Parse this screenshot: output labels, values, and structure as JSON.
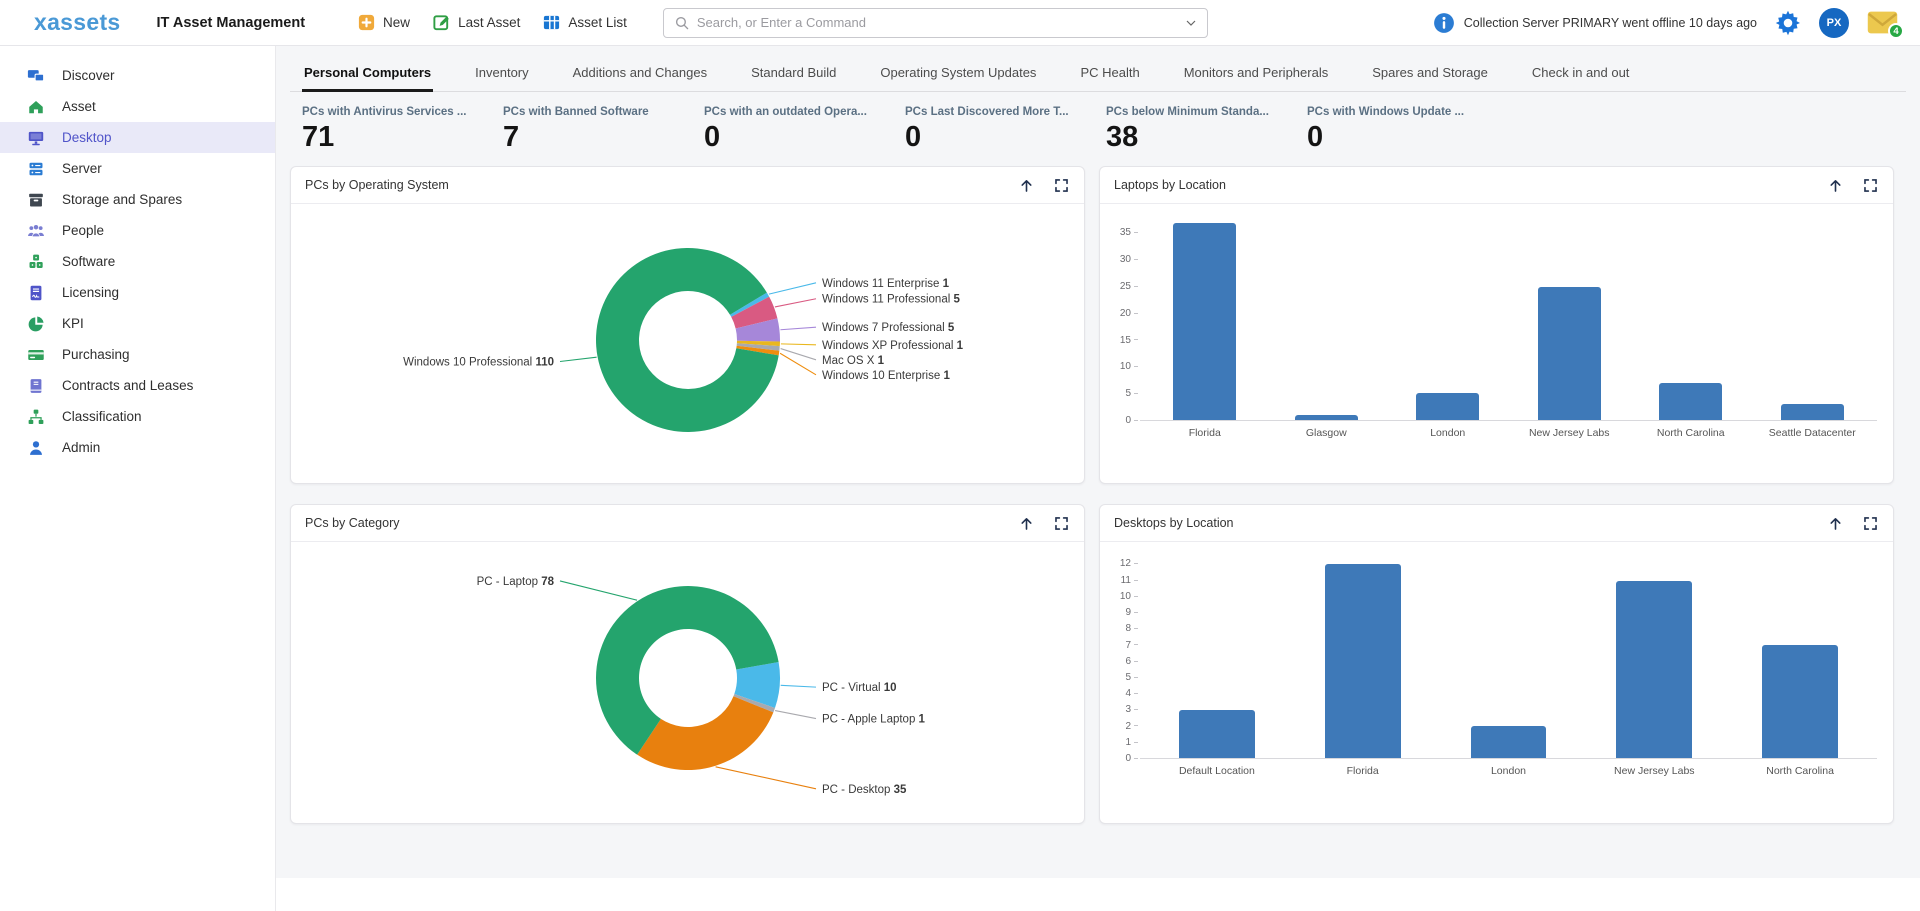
{
  "topbar": {
    "logo": "xassets",
    "app_title": "IT Asset Management",
    "actions": [
      {
        "label": "New",
        "icon": "plus-square"
      },
      {
        "label": "Last Asset",
        "icon": "edit-square"
      },
      {
        "label": "Asset List",
        "icon": "table"
      }
    ],
    "search": {
      "placeholder": "Search, or Enter a Command"
    },
    "notice": "Collection Server PRIMARY went offline 10 days ago",
    "user_initials": "PX",
    "mail_badge_count": "4"
  },
  "sidebar": {
    "items": [
      {
        "label": "Discover",
        "icon": "discover",
        "color": "#2e6fd0",
        "active": false
      },
      {
        "label": "Asset",
        "icon": "asset",
        "color": "#2fa05a",
        "active": false
      },
      {
        "label": "Desktop",
        "icon": "desktop",
        "color": "#4f54c8",
        "active": true
      },
      {
        "label": "Server",
        "icon": "server",
        "color": "#2b7cd3",
        "active": false
      },
      {
        "label": "Storage and Spares",
        "icon": "storage",
        "color": "#3f4750",
        "active": false
      },
      {
        "label": "People",
        "icon": "people",
        "color": "#7a7ed2",
        "active": false
      },
      {
        "label": "Software",
        "icon": "software",
        "color": "#2fa05a",
        "active": false
      },
      {
        "label": "Licensing",
        "icon": "licensing",
        "color": "#4f54c8",
        "active": false
      },
      {
        "label": "KPI",
        "icon": "kpi",
        "color": "#2a9e63",
        "active": false
      },
      {
        "label": "Purchasing",
        "icon": "purchasing",
        "color": "#2fa05a",
        "active": false
      },
      {
        "label": "Contracts and Leases",
        "icon": "contracts",
        "color": "#6f74d0",
        "active": false
      },
      {
        "label": "Classification",
        "icon": "classification",
        "color": "#2fa05a",
        "active": false
      },
      {
        "label": "Admin",
        "icon": "admin",
        "color": "#2e6fd0",
        "active": false
      }
    ]
  },
  "tabs": [
    {
      "label": "Personal Computers",
      "active": true
    },
    {
      "label": "Inventory",
      "active": false
    },
    {
      "label": "Additions and Changes",
      "active": false
    },
    {
      "label": "Standard Build",
      "active": false
    },
    {
      "label": "Operating System Updates",
      "active": false
    },
    {
      "label": "PC Health",
      "active": false
    },
    {
      "label": "Monitors and Peripherals",
      "active": false
    },
    {
      "label": "Spares and Storage",
      "active": false
    },
    {
      "label": "Check in and out",
      "active": false
    }
  ],
  "kpis": [
    {
      "label": "PCs with Antivirus Services ...",
      "value": "71"
    },
    {
      "label": "PCs with Banned Software",
      "value": "7"
    },
    {
      "label": "PCs with an outdated Opera...",
      "value": "0"
    },
    {
      "label": "PCs Last Discovered More T...",
      "value": "0"
    },
    {
      "label": "PCs below Minimum Standa...",
      "value": "38"
    },
    {
      "label": "PCs with Windows Update ...",
      "value": "0"
    }
  ],
  "panels": [
    {
      "chart": "pcs_by_operating_system",
      "row": 1
    },
    {
      "chart": "laptops_by_location",
      "row": 1
    },
    {
      "chart": "pcs_by_category",
      "row": 2
    },
    {
      "chart": "desktops_by_location",
      "row": 2
    }
  ],
  "chart_data": {
    "pcs_by_operating_system": {
      "type": "donut",
      "title": "PCs by Operating System",
      "start_angle": 59,
      "slices": [
        {
          "label": "Windows 11 Enterprise",
          "value": 1,
          "color": "#4ab9e9"
        },
        {
          "label": "Windows 11 Professional",
          "value": 5,
          "color": "#d95a82"
        },
        {
          "label": "Windows 7 Professional",
          "value": 5,
          "color": "#a687d9"
        },
        {
          "label": "Windows XP Professional",
          "value": 1,
          "color": "#e9b71e"
        },
        {
          "label": "Mac OS X",
          "value": 1,
          "color": "#a9a9ae"
        },
        {
          "label": "Windows 10 Enterprise",
          "value": 1,
          "color": "#ee8d0e"
        },
        {
          "label": "Windows 10 Professional",
          "value": 110,
          "color": "#24a46d"
        }
      ]
    },
    "laptops_by_location": {
      "type": "bar",
      "title": "Laptops by Location",
      "categories": [
        "Florida",
        "Glasgow",
        "London",
        "New Jersey Labs",
        "North Carolina",
        "Seattle Datacenter"
      ],
      "values": [
        37,
        1,
        5,
        25,
        7,
        3
      ],
      "y_max": 37.5,
      "y_ticks": [
        0,
        5,
        10,
        15,
        20,
        25,
        30,
        35
      ],
      "bar_color": "#3e79b8"
    },
    "pcs_by_category": {
      "type": "donut",
      "title": "PCs by Category",
      "start_angle": 80,
      "slices": [
        {
          "label": "PC - Virtual",
          "value": 10,
          "color": "#4ab9e9"
        },
        {
          "label": "PC - Apple Laptop",
          "value": 1,
          "color": "#a9a9ae"
        },
        {
          "label": "PC - Desktop",
          "value": 35,
          "color": "#e8800e"
        },
        {
          "label": "PC - Laptop",
          "value": 78,
          "color": "#24a46d"
        }
      ]
    },
    "desktops_by_location": {
      "type": "bar",
      "title": "Desktops by Location",
      "categories": [
        "Default Location",
        "Florida",
        "London",
        "New Jersey Labs",
        "North Carolina"
      ],
      "values": [
        3,
        12,
        2,
        11,
        7
      ],
      "y_max": 12.4,
      "y_ticks": [
        0,
        1,
        2,
        3,
        4,
        5,
        6,
        7,
        8,
        9,
        10,
        11,
        12
      ],
      "bar_color": "#3e79b8"
    }
  }
}
